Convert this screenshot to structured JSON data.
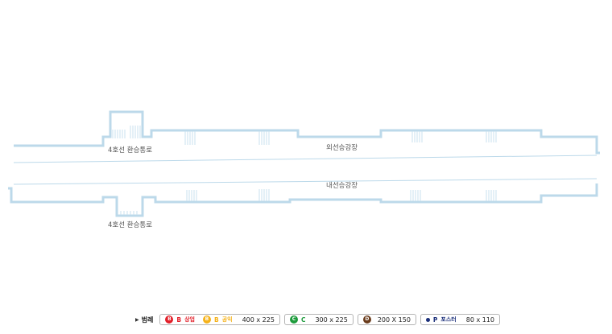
{
  "map": {
    "labels": {
      "transfer_top": "4호선 환승통로",
      "outer_platform": "외선승강장",
      "inner_platform": "내선승강장",
      "transfer_bottom": "4호선 환승통로"
    }
  },
  "legend": {
    "title": "범례",
    "items": [
      {
        "badges": [
          {
            "letter": "B",
            "code": "B",
            "sub": "상업",
            "color": "#e2202a"
          },
          {
            "letter": "B",
            "code": "B",
            "sub": "공익",
            "color": "#f5b21b"
          }
        ],
        "size": "400 x 225"
      },
      {
        "badges": [
          {
            "letter": "C",
            "code": "C",
            "sub": "",
            "color": "#1e9b3c"
          }
        ],
        "size": "300 x 225"
      },
      {
        "badges": [
          {
            "letter": "D",
            "code": "",
            "sub": "",
            "color": "#6a3c1c"
          }
        ],
        "size": "200 X 150"
      },
      {
        "badges": [
          {
            "letter": "",
            "code": "P",
            "sub": "포스터",
            "color": "#1b2f7a"
          }
        ],
        "size": "80 x 110"
      }
    ]
  }
}
